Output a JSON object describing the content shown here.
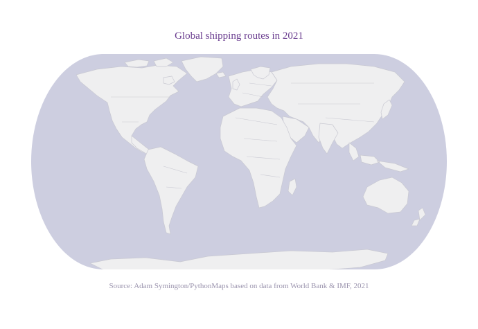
{
  "map": {
    "title": "Global shipping routes in 2021",
    "source": "Source: Adam Symington/PythonMaps based on data from World Bank & IMF, 2021",
    "projection": "Robinson",
    "colors": {
      "title": "#6a3d8f",
      "ocean": "#cdcee0",
      "land": "#efeff0",
      "borders": "#c9c9d2",
      "source_text": "#9a93ad"
    }
  }
}
